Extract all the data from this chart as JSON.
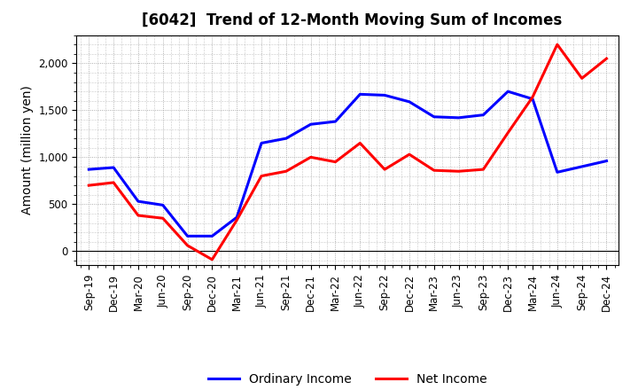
{
  "title": "[6042]  Trend of 12-Month Moving Sum of Incomes",
  "ylabel": "Amount (million yen)",
  "x_labels": [
    "Sep-19",
    "Dec-19",
    "Mar-20",
    "Jun-20",
    "Sep-20",
    "Dec-20",
    "Mar-21",
    "Jun-21",
    "Sep-21",
    "Dec-21",
    "Mar-22",
    "Jun-22",
    "Sep-22",
    "Dec-22",
    "Mar-23",
    "Jun-23",
    "Sep-23",
    "Dec-23",
    "Mar-24",
    "Jun-24",
    "Sep-24",
    "Dec-24"
  ],
  "ordinary_income": [
    870,
    890,
    530,
    490,
    160,
    160,
    360,
    1150,
    1200,
    1350,
    1380,
    1670,
    1660,
    1590,
    1430,
    1420,
    1450,
    1700,
    1620,
    840,
    900,
    960
  ],
  "net_income": [
    700,
    730,
    380,
    350,
    60,
    -90,
    330,
    800,
    850,
    1000,
    950,
    1150,
    870,
    1030,
    860,
    850,
    870,
    1260,
    1640,
    2200,
    1840,
    2050
  ],
  "ordinary_color": "#0000ff",
  "net_color": "#ff0000",
  "ylim": [
    -150,
    2300
  ],
  "yticks": [
    0,
    500,
    1000,
    1500,
    2000
  ],
  "background_color": "#ffffff",
  "grid_color": "#999999",
  "title_fontsize": 12,
  "axis_label_fontsize": 10,
  "tick_fontsize": 8.5,
  "legend_fontsize": 10,
  "line_width": 2.2
}
